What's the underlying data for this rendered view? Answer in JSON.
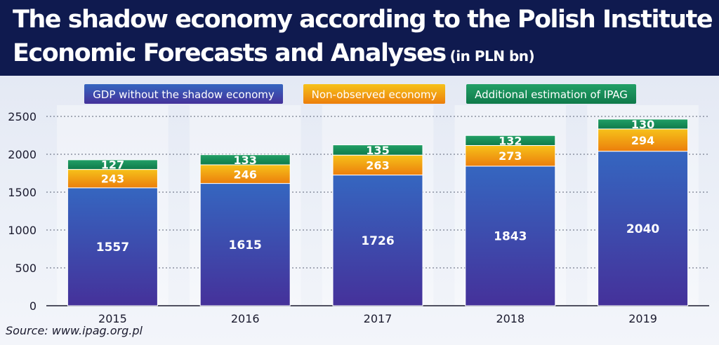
{
  "header": {
    "title_line1": "The shadow economy according to the Polish Institute of",
    "title_line2": "Economic Forecasts and Analyses",
    "title_unit": "(in PLN bn)"
  },
  "source": "Source: www.ipag.org.pl",
  "colors": {
    "gdp_top": "#3566c0",
    "gdp_bottom": "#45319a",
    "nonobserved_top": "#f6c21a",
    "nonobserved_bottom": "#ec7e0c",
    "ipag_top": "#22a067",
    "ipag_bottom": "#0f7a4a",
    "legend_gdp_text": "#ffffff",
    "legend_nonobserved_text": "#ffffff",
    "legend_ipag_text": "#ffffff"
  },
  "chart_data": {
    "type": "bar",
    "stacked": true,
    "title": "The shadow economy according to the Polish Institute of Economic Forecasts and Analyses (in PLN bn)",
    "categories": [
      "2015",
      "2016",
      "2017",
      "2018",
      "2019"
    ],
    "series": [
      {
        "name": "GDP without the shadow economy",
        "key": "gdp",
        "values": [
          1557,
          1615,
          1726,
          1843,
          2040
        ]
      },
      {
        "name": "Non-observed economy",
        "key": "nonobserved",
        "values": [
          243,
          246,
          263,
          273,
          294
        ]
      },
      {
        "name": "Additional estimation of IPAG",
        "key": "ipag",
        "values": [
          127,
          133,
          135,
          132,
          130
        ]
      }
    ],
    "ylim": [
      0,
      2500
    ],
    "yticks": [
      0,
      500,
      1000,
      1500,
      2000,
      2500
    ],
    "grid": true,
    "legend_position": "top"
  }
}
